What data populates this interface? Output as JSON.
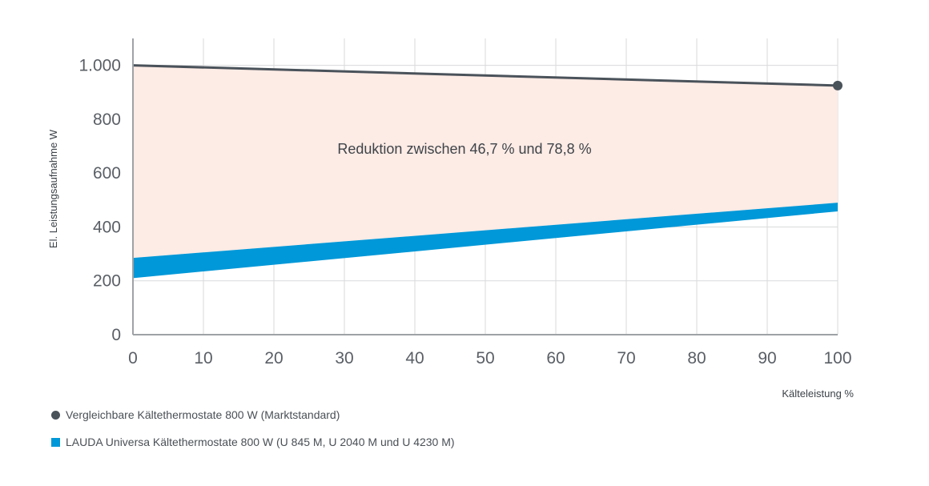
{
  "chart_data": {
    "type": "area",
    "xlabel": "Kälteleistung %",
    "ylabel": "El. Leistungsaufnahme W",
    "xlim": [
      0,
      100
    ],
    "ylim": [
      0,
      1100
    ],
    "x_ticks": [
      0,
      10,
      20,
      30,
      40,
      50,
      60,
      70,
      80,
      90,
      100
    ],
    "y_ticks": [
      0,
      200,
      400,
      600,
      800,
      1000
    ],
    "x_tick_labels": [
      "0",
      "10",
      "20",
      "30",
      "40",
      "50",
      "60",
      "70",
      "80",
      "90",
      "100"
    ],
    "y_tick_labels": [
      "0",
      "200",
      "400",
      "600",
      "800",
      "1.000"
    ],
    "grid": true,
    "annotation": "Reduktion zwischen 46,7 % und 78,8 %",
    "series": [
      {
        "name": "Vergleichbare Kältethermostate 800 W (Marktstandard)",
        "type": "line",
        "color": "#4a525a",
        "x": [
          0,
          100
        ],
        "y": [
          1000,
          925
        ]
      },
      {
        "name": "LAUDA Universa Kältethermostate 800 W (U 845 M, U 2040 M und U 4230 M)",
        "type": "band",
        "color": "#0098d8",
        "x": [
          0,
          100
        ],
        "y_low": [
          210,
          458
        ],
        "y_high": [
          285,
          490
        ]
      }
    ],
    "reduction_area_color": "#fdebe5",
    "legend_placement": "bottom-left"
  }
}
